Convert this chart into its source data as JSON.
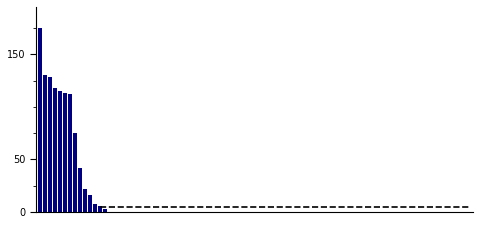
{
  "bar_values": [
    175,
    130,
    128,
    118,
    115,
    113,
    112,
    75,
    42,
    22,
    16,
    8,
    6,
    3
  ],
  "n_total": 87,
  "bar_color": "#000080",
  "dashed_line_color": "black",
  "dashed_line_y": 5,
  "yticks": [
    0,
    50,
    150
  ],
  "ylim": [
    0,
    195
  ],
  "background_color": "#ffffff",
  "bar_width": 0.75,
  "figsize": [
    4.8,
    2.25
  ],
  "dpi": 100
}
